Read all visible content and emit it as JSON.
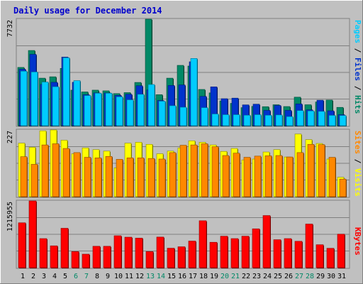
{
  "chart_data": [
    {
      "panel": "pages-files-hits",
      "type": "bar",
      "title": "Daily usage for December 2014",
      "ylabel": "7732",
      "ylim": [
        0,
        7732
      ],
      "grid": true,
      "side_labels": [
        {
          "text": "Pages",
          "color": "#00ccff"
        },
        {
          "text": "Files",
          "color": "#0033cc"
        },
        {
          "text": "Hits",
          "color": "#008866"
        }
      ],
      "categories": [
        "1",
        "2",
        "3",
        "4",
        "5",
        "6",
        "7",
        "8",
        "9",
        "10",
        "11",
        "12",
        "13",
        "14",
        "15",
        "16",
        "17",
        "18",
        "19",
        "20",
        "21",
        "22",
        "23",
        "24",
        "25",
        "26",
        "27",
        "28",
        "29",
        "30",
        "31"
      ],
      "weekend_days": [
        "6",
        "7",
        "13",
        "14",
        "20",
        "21",
        "27",
        "28"
      ],
      "series": [
        {
          "name": "Hits",
          "color": "#008866",
          "values": [
            4230,
            5460,
            3450,
            3550,
            4160,
            2580,
            2450,
            2580,
            2530,
            2330,
            2400,
            3140,
            7732,
            2250,
            3450,
            4380,
            4330,
            2630,
            2380,
            1800,
            1620,
            1310,
            1400,
            1380,
            1520,
            1390,
            2070,
            1520,
            1720,
            1860,
            1330
          ]
        },
        {
          "name": "Files",
          "color": "#0033cc",
          "values": [
            4100,
            5180,
            3000,
            3150,
            4980,
            3150,
            2250,
            2380,
            2380,
            2200,
            2280,
            2900,
            2600,
            1830,
            2920,
            2960,
            4640,
            2130,
            2820,
            1960,
            2000,
            1510,
            1560,
            1110,
            1470,
            1110,
            1580,
            1150,
            1850,
            1080,
            800
          ]
        },
        {
          "name": "Pages",
          "color": "#00ccff",
          "values": [
            3960,
            3900,
            3170,
            2830,
            4930,
            3270,
            2190,
            2360,
            2360,
            2100,
            1880,
            2280,
            2990,
            1780,
            1450,
            1340,
            4880,
            1310,
            850,
            800,
            800,
            760,
            800,
            760,
            780,
            660,
            1100,
            1070,
            1040,
            750,
            740
          ]
        }
      ]
    },
    {
      "panel": "visits-sites",
      "type": "bar",
      "ylabel": "227",
      "ylim": [
        0,
        227
      ],
      "grid": true,
      "side_labels": [
        {
          "text": "Sites",
          "color": "#ff8800"
        },
        {
          "text": "Visits",
          "color": "#ffff00"
        }
      ],
      "series": [
        {
          "name": "Visits",
          "color": "#ffff00",
          "values": [
            182,
            168,
            224,
            227,
            192,
            146,
            166,
            160,
            155,
            98,
            182,
            185,
            178,
            146,
            155,
            166,
            190,
            185,
            176,
            154,
            164,
            125,
            128,
            152,
            160,
            135,
            213,
            194,
            181,
            128,
            66
          ]
        },
        {
          "name": "Sites",
          "color": "#ff8800",
          "values": [
            136,
            110,
            176,
            180,
            164,
            150,
            134,
            132,
            137,
            127,
            132,
            132,
            130,
            128,
            150,
            175,
            176,
            180,
            170,
            140,
            148,
            134,
            138,
            139,
            140,
            135,
            150,
            178,
            177,
            134,
            60
          ]
        }
      ]
    },
    {
      "panel": "kbytes",
      "type": "bar",
      "ylabel": "1215955",
      "ylim": [
        0,
        1215955
      ],
      "grid": true,
      "side_labels": [
        {
          "text": "KBytes",
          "color": "#ff0000"
        }
      ],
      "series": [
        {
          "name": "KBytes",
          "color": "#ff0000",
          "values": [
            817800,
            1215955,
            530000,
            398000,
            718000,
            293000,
            246000,
            390000,
            390000,
            582000,
            556000,
            539000,
            293000,
            558000,
            355000,
            381000,
            485000,
            855000,
            463000,
            574000,
            530000,
            574000,
            708000,
            950000,
            510000,
            530000,
            481000,
            795000,
            418000,
            353000,
            611000
          ]
        }
      ]
    }
  ]
}
